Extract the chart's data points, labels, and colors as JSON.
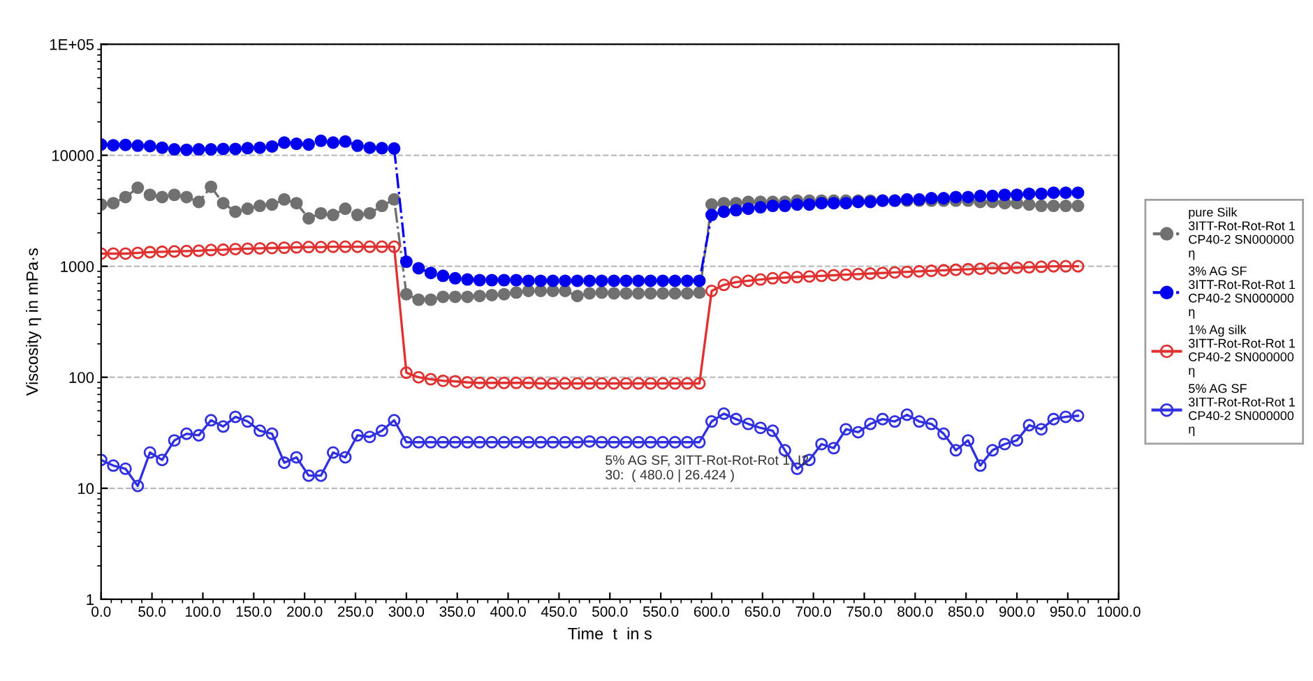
{
  "chart_data": {
    "type": "line",
    "xlabel": "Time  t  in s",
    "ylabel": "Viscosity η in mPa·s",
    "x": [
      0,
      12,
      24,
      36,
      48,
      60,
      72,
      84,
      96,
      108,
      120,
      132,
      144,
      156,
      168,
      180,
      192,
      204,
      216,
      228,
      240,
      252,
      264,
      276,
      288,
      300,
      312,
      324,
      336,
      348,
      360,
      372,
      384,
      396,
      408,
      420,
      432,
      444,
      456,
      468,
      480,
      492,
      504,
      516,
      528,
      540,
      552,
      564,
      576,
      588,
      600,
      612,
      624,
      636,
      648,
      660,
      672,
      684,
      696,
      708,
      720,
      732,
      744,
      756,
      768,
      780,
      792,
      804,
      816,
      828,
      840,
      852,
      864,
      876,
      888,
      900,
      912,
      924,
      936,
      948,
      960
    ],
    "series": [
      {
        "name": "pure Silk\n3ITT-Rot-Rot-Rot 1\nCP40-2 SN000000\nη",
        "color": "#707070",
        "line_style": "dashed",
        "values": [
          3600,
          3700,
          4200,
          5100,
          4400,
          4200,
          4400,
          4200,
          3800,
          5200,
          3700,
          3100,
          3300,
          3500,
          3600,
          4000,
          3700,
          2700,
          3000,
          2900,
          3300,
          2900,
          3000,
          3500,
          4000,
          560,
          500,
          500,
          530,
          530,
          530,
          540,
          550,
          560,
          580,
          600,
          600,
          600,
          600,
          540,
          570,
          580,
          570,
          570,
          570,
          570,
          570,
          570,
          570,
          580,
          3600,
          3700,
          3700,
          3800,
          3800,
          3800,
          3800,
          3900,
          3900,
          3900,
          3900,
          3900,
          3900,
          3900,
          3900,
          3900,
          3900,
          3900,
          3900,
          3900,
          3900,
          3900,
          3800,
          3800,
          3700,
          3700,
          3600,
          3500,
          3500,
          3500,
          3500
        ]
      },
      {
        "name": "3% AG SF\n3ITT-Rot-Rot-Rot 1\nCP40-2 SN000000\nη",
        "color": "#0000ee",
        "line_style": "dashed",
        "values": [
          12500,
          12300,
          12400,
          12200,
          12100,
          11700,
          11300,
          11200,
          11300,
          11300,
          11400,
          11400,
          11600,
          11700,
          12000,
          13000,
          12700,
          12500,
          13500,
          13000,
          13300,
          12200,
          11700,
          11600,
          11500,
          1100,
          960,
          870,
          820,
          780,
          760,
          750,
          750,
          750,
          750,
          740,
          740,
          740,
          740,
          740,
          740,
          740,
          740,
          740,
          740,
          740,
          740,
          740,
          740,
          740,
          2900,
          3100,
          3200,
          3300,
          3400,
          3500,
          3500,
          3600,
          3600,
          3700,
          3700,
          3700,
          3800,
          3800,
          3900,
          3900,
          4000,
          4000,
          4100,
          4100,
          4200,
          4200,
          4300,
          4300,
          4400,
          4400,
          4500,
          4500,
          4600,
          4600,
          4600
        ]
      },
      {
        "name": "1% Ag silk\n3ITT-Rot-Rot-Rot 1\nCP40-2 SN000000\nη",
        "color": "#e03030",
        "line_style": "solid",
        "values": [
          1300,
          1300,
          1300,
          1320,
          1340,
          1350,
          1360,
          1370,
          1380,
          1400,
          1410,
          1430,
          1440,
          1450,
          1460,
          1470,
          1480,
          1490,
          1490,
          1500,
          1500,
          1500,
          1500,
          1500,
          1500,
          110,
          100,
          96,
          93,
          92,
          90,
          89,
          89,
          89,
          89,
          89,
          88,
          88,
          88,
          88,
          88,
          88,
          88,
          88,
          88,
          88,
          88,
          88,
          88,
          88,
          600,
          680,
          720,
          740,
          760,
          780,
          790,
          800,
          810,
          820,
          830,
          840,
          850,
          860,
          870,
          880,
          890,
          900,
          910,
          920,
          930,
          940,
          950,
          960,
          960,
          970,
          980,
          990,
          1000,
          1000,
          1000
        ]
      },
      {
        "name": "5% AG SF\n3ITT-Rot-Rot-Rot 1\nCP40-2 SN000000\nη",
        "color": "#3030e0",
        "line_style": "solid",
        "values": [
          18,
          16,
          15,
          10.5,
          21,
          18,
          27,
          31,
          30,
          41,
          36,
          44,
          40,
          33,
          31,
          17,
          19,
          13,
          13,
          21,
          19,
          30,
          29,
          33,
          41,
          26,
          26,
          26,
          26,
          26,
          26,
          26,
          26,
          26,
          26,
          26,
          26,
          26,
          26,
          26,
          26.424,
          26,
          26,
          26,
          26,
          26,
          26,
          26,
          26,
          26,
          40,
          47,
          42,
          38,
          35,
          33,
          22,
          15,
          18,
          25,
          23,
          34,
          32,
          38,
          42,
          40,
          46,
          40,
          38,
          31,
          22,
          27,
          16,
          22,
          25,
          27,
          37,
          34,
          42,
          44,
          45
        ]
      }
    ],
    "log": "y",
    "ylim": [
      1,
      100000
    ],
    "yticks": [
      1,
      10,
      100,
      1000,
      10000,
      {
        "value": 100000,
        "label": "1E+05"
      }
    ],
    "xlim": [
      0,
      1000
    ],
    "xticks": [
      {
        "value": 0,
        "label": "0.0"
      },
      {
        "value": 50,
        "label": "50.0"
      },
      {
        "value": 100,
        "label": "100.0"
      },
      {
        "value": 150,
        "label": "150.0"
      },
      {
        "value": 200,
        "label": "200.0"
      },
      {
        "value": 250,
        "label": "250.0"
      },
      {
        "value": 300,
        "label": "300.0"
      },
      {
        "value": 350,
        "label": "350.0"
      },
      {
        "value": 400,
        "label": "400.0"
      },
      {
        "value": 450,
        "label": "450.0"
      },
      {
        "value": 500,
        "label": "500.0"
      },
      {
        "value": 550,
        "label": "550.0"
      },
      {
        "value": 600,
        "label": "600.0"
      },
      {
        "value": 650,
        "label": "650.0"
      },
      {
        "value": 700,
        "label": "700.0"
      },
      {
        "value": 750,
        "label": "750.0"
      },
      {
        "value": 800,
        "label": "800.0"
      },
      {
        "value": 850,
        "label": "850.0"
      },
      {
        "value": 900,
        "label": "900.0"
      },
      {
        "value": 950,
        "label": "950.0"
      },
      {
        "value": 1000,
        "label": "1000.0"
      }
    ],
    "grid": "y",
    "marker": "circle",
    "legend": "right",
    "annotations": [
      {
        "text": "5% AG SF, 3ITT-Rot-Rot-Rot 1, I2\n30:  ( 480.0 | 26.424 )",
        "x": 480,
        "y": 26.424
      }
    ]
  }
}
